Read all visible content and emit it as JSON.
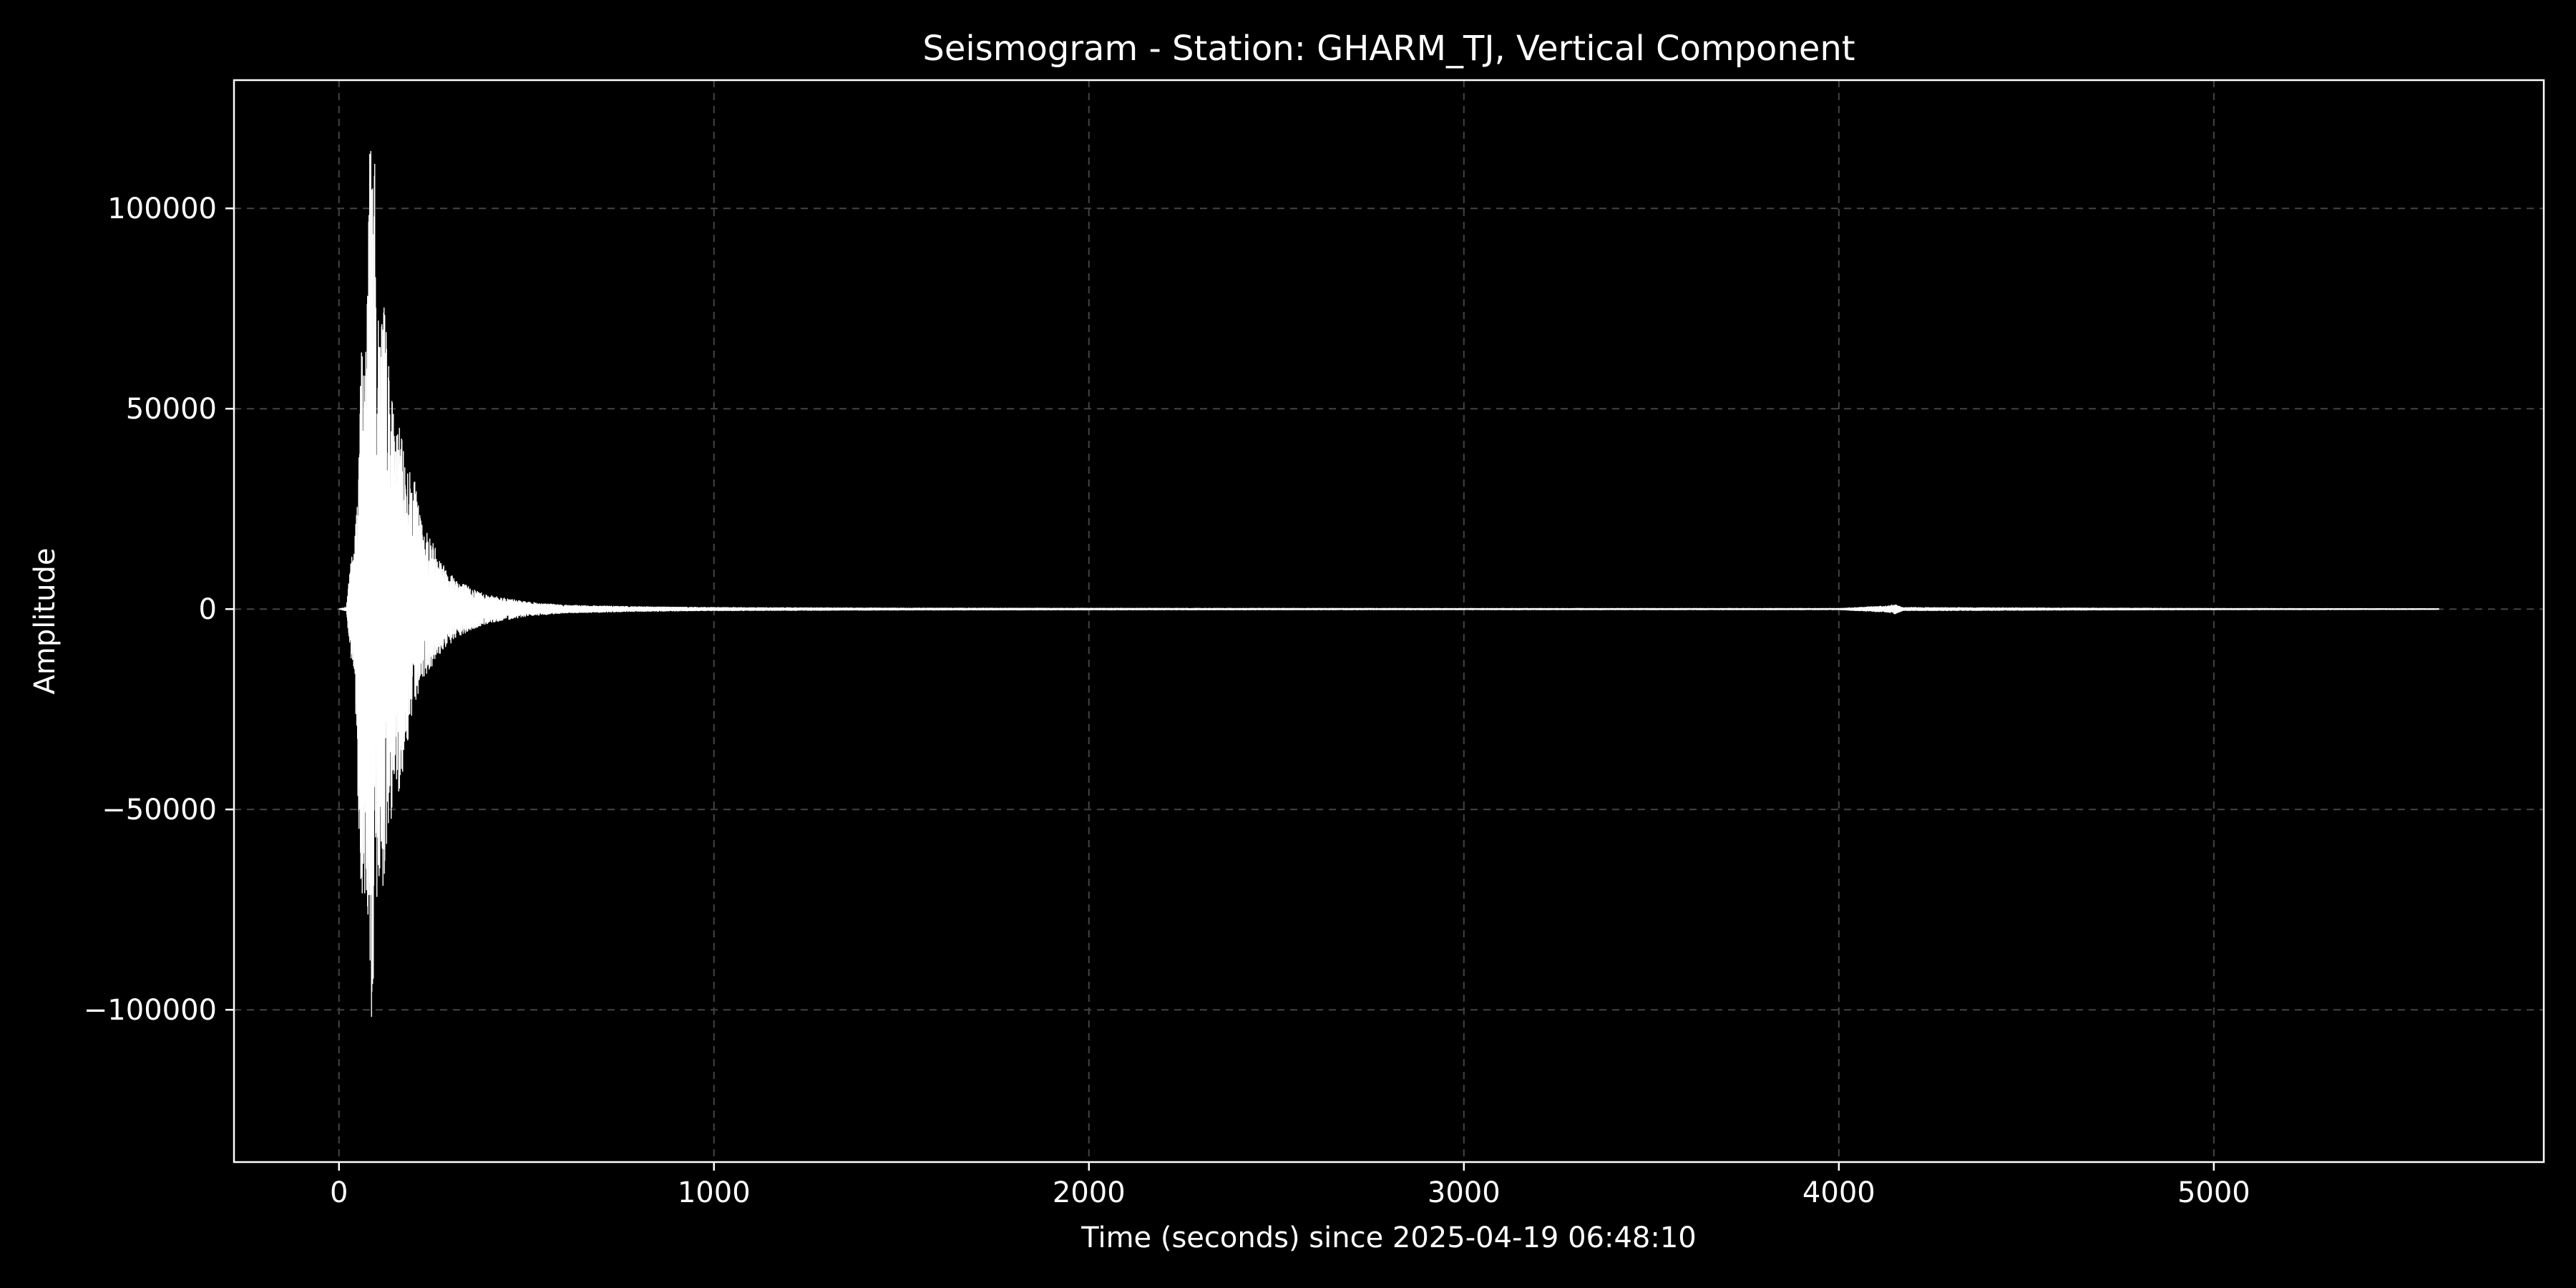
{
  "chart_data": {
    "type": "line",
    "title": "Seismogram - Station: GHARM_TJ, Vertical Component",
    "xlabel": "Time (seconds) since 2025-04-19 06:48:10",
    "ylabel": "Amplitude",
    "xlim": [
      -280,
      5880
    ],
    "ylim": [
      -138000,
      132000
    ],
    "x_ticks": [
      0,
      1000,
      2000,
      3000,
      4000,
      5000
    ],
    "x_tick_labels": [
      "0",
      "1000",
      "2000",
      "3000",
      "4000",
      "5000"
    ],
    "y_ticks": [
      -100000,
      -50000,
      0,
      50000,
      100000
    ],
    "y_tick_labels": [
      "−100000",
      "−50000",
      "0",
      "50000",
      "100000"
    ],
    "grid": true,
    "legend": "none",
    "colors": {
      "background": "#000000",
      "trace": "#ffffff",
      "axes": "#ffffff",
      "grid": "#444444"
    },
    "series": [
      {
        "x_start": 0,
        "x_end": 5600,
        "envelope": {
          "time": [
            0,
            20,
            30,
            40,
            50,
            60,
            70,
            80,
            85,
            90,
            95,
            100,
            110,
            120,
            130,
            140,
            150,
            160,
            180,
            200,
            220,
            250,
            280,
            320,
            360,
            400,
            500,
            600,
            800,
            1000,
            1500,
            2000,
            3000,
            4000,
            4130,
            4150,
            4170,
            5000,
            5600
          ],
          "upper": [
            0,
            500,
            12000,
            15000,
            30000,
            67000,
            60000,
            118000,
            119000,
            113000,
            115000,
            72000,
            73000,
            78000,
            65000,
            55000,
            45000,
            46000,
            36000,
            33000,
            22000,
            17000,
            11000,
            7000,
            5000,
            3500,
            1800,
            1000,
            600,
            400,
            250,
            200,
            150,
            150,
            800,
            1200,
            400,
            150,
            100
          ],
          "lower": [
            0,
            -500,
            -12000,
            -16000,
            -45000,
            -75000,
            -73000,
            -78000,
            -105000,
            -126000,
            -80000,
            -72000,
            -73000,
            -68000,
            -60000,
            -52000,
            -42000,
            -46000,
            -35000,
            -25000,
            -18000,
            -14000,
            -10000,
            -7000,
            -5000,
            -3500,
            -1800,
            -1000,
            -600,
            -400,
            -250,
            -200,
            -150,
            -150,
            -800,
            -1200,
            -400,
            -150,
            -100
          ]
        }
      }
    ]
  }
}
